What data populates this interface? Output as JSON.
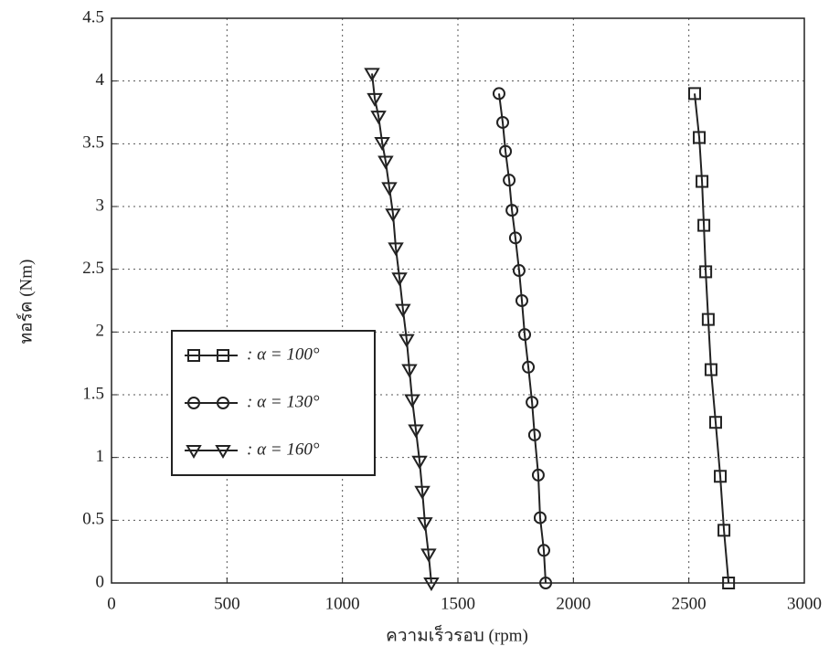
{
  "chart_data": {
    "type": "line",
    "x_label": "ความเร็วรอบ (rpm)",
    "y_label": "ทอร์ค (Nm)",
    "xlim": [
      0,
      3000
    ],
    "xticks": [
      0,
      500,
      1000,
      1500,
      2000,
      2500,
      3000
    ],
    "ylim": [
      0,
      4.5
    ],
    "yticks": [
      0,
      0.5,
      1,
      1.5,
      2,
      2.5,
      3,
      3.5,
      4,
      4.5
    ],
    "grid": true,
    "legend": "lower left",
    "series": [
      {
        "name": ": α = 100°",
        "color": "#222222",
        "marker": "square",
        "x": [
          2672,
          2652,
          2636,
          2616,
          2596,
          2584,
          2573,
          2565,
          2557,
          2545,
          2525
        ],
        "values": [
          0,
          0.42,
          0.85,
          1.28,
          1.7,
          2.1,
          2.48,
          2.85,
          3.2,
          3.55,
          3.9
        ]
      },
      {
        "name": ": α = 130°",
        "color": "#222222",
        "marker": "circle",
        "x": [
          1880,
          1872,
          1856,
          1848,
          1832,
          1821,
          1805,
          1789,
          1777,
          1765,
          1749,
          1734,
          1722,
          1706,
          1694,
          1678
        ],
        "values": [
          0,
          0.26,
          0.52,
          0.86,
          1.18,
          1.44,
          1.72,
          1.98,
          2.25,
          2.49,
          2.75,
          2.97,
          3.21,
          3.44,
          3.67,
          3.9
        ]
      },
      {
        "name": ": α = 160°",
        "color": "#222222",
        "marker": "triangle-down",
        "x": [
          1385,
          1373,
          1357,
          1346,
          1334,
          1318,
          1302,
          1290,
          1278,
          1262,
          1247,
          1231,
          1219,
          1203,
          1187,
          1172,
          1156,
          1140,
          1128
        ],
        "values": [
          0,
          0.23,
          0.48,
          0.73,
          0.97,
          1.22,
          1.46,
          1.7,
          1.94,
          2.18,
          2.43,
          2.67,
          2.94,
          3.15,
          3.36,
          3.51,
          3.72,
          3.86,
          4.06
        ]
      }
    ]
  }
}
